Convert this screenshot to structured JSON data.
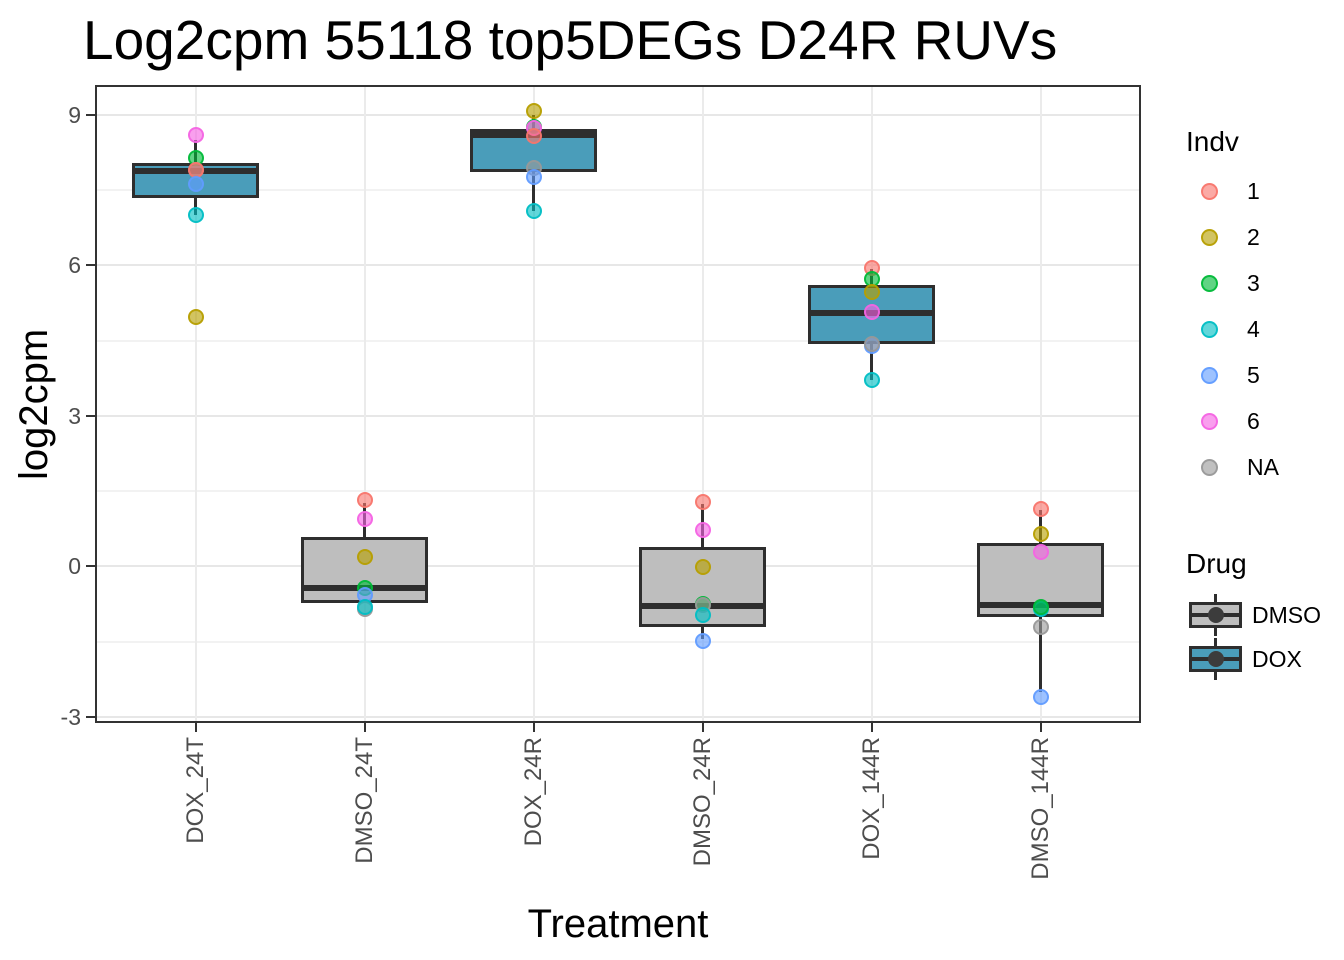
{
  "chart_data": {
    "type": "boxplot",
    "title": "Log2cpm 55118 top5DEGs D24R RUVs",
    "xlabel": "Treatment",
    "ylabel": "log2cpm",
    "ylim": [
      -3.12,
      9.59
    ],
    "y_major_ticks": [
      9,
      6,
      3,
      0,
      -3
    ],
    "y_minor_ticks": [
      7.5,
      4.5,
      1.5,
      -1.5
    ],
    "grid": "on",
    "legend_position": "right",
    "categories": [
      "DOX_24T",
      "DMSO_24T",
      "DOX_24R",
      "DMSO_24R",
      "DOX_144R",
      "DMSO_144R"
    ],
    "drug_colors": {
      "DMSO": "#BEBEBE",
      "DOX": "#4A9DBA"
    },
    "indv_colors": {
      "1": "#F8766D",
      "2": "#B79F00",
      "3": "#00BA38",
      "4": "#00BFC4",
      "5": "#619CFF",
      "6": "#F564E3",
      "NA": "#999999"
    },
    "boxes": [
      {
        "category": "DOX_24T",
        "drug": "DOX",
        "q1": 7.33,
        "median": 7.88,
        "q3": 8.03,
        "whisker_low": 7.01,
        "whisker_high": 8.49,
        "points": [
          {
            "indv": "6",
            "value": 8.59
          },
          {
            "indv": "3",
            "value": 8.13
          },
          {
            "indv": "NA",
            "value": 7.9
          },
          {
            "indv": "1",
            "value": 7.89
          },
          {
            "indv": "5",
            "value": 7.61
          },
          {
            "indv": "4",
            "value": 7.01
          },
          {
            "indv": "2",
            "value": 4.96
          }
        ]
      },
      {
        "category": "DMSO_24T",
        "drug": "DMSO",
        "q1": -0.72,
        "median": -0.43,
        "q3": 0.59,
        "whisker_low": -0.72,
        "whisker_high": 1.27,
        "points": [
          {
            "indv": "1",
            "value": 1.33
          },
          {
            "indv": "6",
            "value": 0.95
          },
          {
            "indv": "2",
            "value": 0.19
          },
          {
            "indv": "3",
            "value": -0.43
          },
          {
            "indv": "5",
            "value": -0.57
          },
          {
            "indv": "NA",
            "value": -0.85
          },
          {
            "indv": "4",
            "value": -0.8
          }
        ]
      },
      {
        "category": "DOX_24R",
        "drug": "DOX",
        "q1": 7.86,
        "median": 8.6,
        "q3": 8.72,
        "whisker_low": 7.08,
        "whisker_high": 8.99,
        "points": [
          {
            "indv": "2",
            "value": 9.07
          },
          {
            "indv": "3",
            "value": 8.75
          },
          {
            "indv": "6",
            "value": 8.73
          },
          {
            "indv": "1",
            "value": 8.57
          },
          {
            "indv": "NA",
            "value": 7.93
          },
          {
            "indv": "5",
            "value": 7.76
          },
          {
            "indv": "4",
            "value": 7.08
          }
        ]
      },
      {
        "category": "DMSO_24R",
        "drug": "DMSO",
        "q1": -1.21,
        "median": -0.79,
        "q3": 0.39,
        "whisker_low": -1.45,
        "whisker_high": 1.25,
        "points": [
          {
            "indv": "1",
            "value": 1.29
          },
          {
            "indv": "6",
            "value": 0.73
          },
          {
            "indv": "2",
            "value": -0.01
          },
          {
            "indv": "3",
            "value": -0.75
          },
          {
            "indv": "NA",
            "value": -0.77
          },
          {
            "indv": "4",
            "value": -0.97
          },
          {
            "indv": "5",
            "value": -1.49
          }
        ]
      },
      {
        "category": "DOX_144R",
        "drug": "DOX",
        "q1": 4.43,
        "median": 5.05,
        "q3": 5.61,
        "whisker_low": 3.72,
        "whisker_high": 5.92,
        "points": [
          {
            "indv": "1",
            "value": 5.94
          },
          {
            "indv": "3",
            "value": 5.72
          },
          {
            "indv": "2",
            "value": 5.46
          },
          {
            "indv": "6",
            "value": 5.06
          },
          {
            "indv": "5",
            "value": 4.4
          },
          {
            "indv": "NA",
            "value": 4.44
          },
          {
            "indv": "4",
            "value": 3.72
          }
        ]
      },
      {
        "category": "DMSO_144R",
        "drug": "DMSO",
        "q1": -1.01,
        "median": -0.77,
        "q3": 0.47,
        "whisker_low": -2.5,
        "whisker_high": 1.13,
        "points": [
          {
            "indv": "1",
            "value": 1.15
          },
          {
            "indv": "2",
            "value": 0.65
          },
          {
            "indv": "6",
            "value": 0.29
          },
          {
            "indv": "4",
            "value": -0.85
          },
          {
            "indv": "3",
            "value": -0.81
          },
          {
            "indv": "NA",
            "value": -1.21
          },
          {
            "indv": "5",
            "value": -2.61
          }
        ]
      }
    ],
    "legend": {
      "indv": {
        "title": "Indv",
        "entries": [
          {
            "label": "1",
            "color": "#F8766D"
          },
          {
            "label": "2",
            "color": "#B79F00"
          },
          {
            "label": "3",
            "color": "#00BA38"
          },
          {
            "label": "4",
            "color": "#00BFC4"
          },
          {
            "label": "5",
            "color": "#619CFF"
          },
          {
            "label": "6",
            "color": "#F564E3"
          },
          {
            "label": "NA",
            "color": "#999999"
          }
        ]
      },
      "drug": {
        "title": "Drug",
        "entries": [
          {
            "label": "DMSO",
            "color": "#BEBEBE"
          },
          {
            "label": "DOX",
            "color": "#4A9DBA"
          }
        ]
      }
    }
  }
}
